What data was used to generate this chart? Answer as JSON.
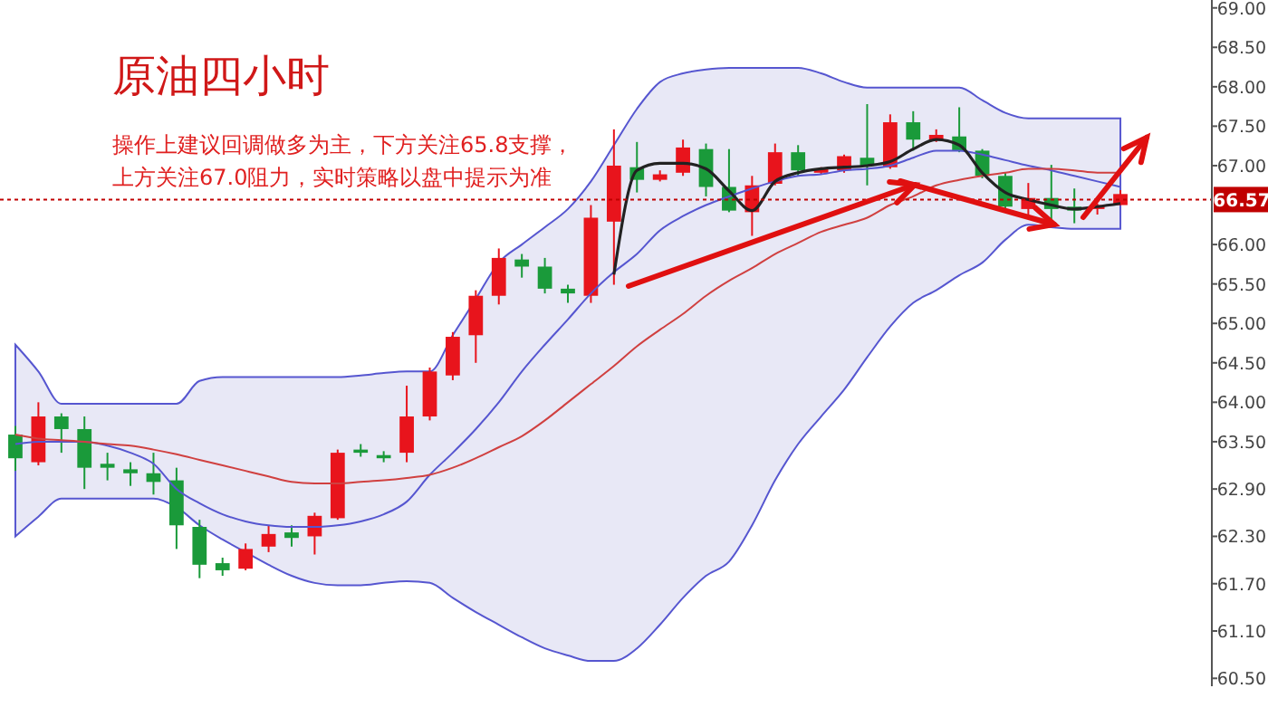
{
  "chart_data": {
    "type": "candlestick",
    "title": "原油四小时",
    "annotations": [
      "操作上建议回调做多为主，下方关注65.8支撑，上方关注67.0阻力，实时策略以盘中提示为准"
    ],
    "categories": [
      null,
      null,
      null,
      null,
      null,
      null,
      null,
      null,
      null,
      null,
      null,
      null,
      null,
      null,
      null,
      null,
      null,
      null,
      null,
      null,
      null,
      null,
      null,
      null,
      null,
      null,
      null,
      null,
      null,
      null,
      null,
      null,
      null,
      null,
      null,
      null,
      null,
      null,
      null,
      null,
      null,
      null,
      null,
      null,
      null,
      null,
      null,
      null,
      null
    ],
    "ohlc": [
      [
        63.59,
        63.7,
        63.13,
        63.29
      ],
      [
        63.24,
        64.0,
        63.2,
        63.82
      ],
      [
        63.82,
        63.86,
        63.36,
        63.66
      ],
      [
        63.66,
        63.82,
        62.9,
        63.17
      ],
      [
        63.22,
        63.36,
        63.01,
        63.17
      ],
      [
        63.15,
        63.24,
        62.94,
        63.1
      ],
      [
        63.1,
        63.36,
        62.83,
        62.99
      ],
      [
        63.01,
        63.17,
        62.14,
        62.44
      ],
      [
        62.42,
        62.51,
        61.77,
        61.94
      ],
      [
        61.96,
        62.03,
        61.8,
        61.87
      ],
      [
        61.89,
        62.21,
        61.87,
        62.14
      ],
      [
        62.17,
        62.44,
        62.1,
        62.33
      ],
      [
        62.35,
        62.44,
        62.17,
        62.28
      ],
      [
        62.3,
        62.6,
        62.07,
        62.56
      ],
      [
        62.53,
        63.4,
        62.51,
        63.36
      ],
      [
        63.4,
        63.47,
        63.31,
        63.36
      ],
      [
        63.33,
        63.38,
        63.24,
        63.29
      ],
      [
        63.36,
        64.21,
        63.24,
        63.82
      ],
      [
        63.82,
        64.44,
        63.77,
        64.39
      ],
      [
        64.34,
        64.89,
        64.28,
        64.83
      ],
      [
        64.85,
        65.42,
        64.5,
        65.35
      ],
      [
        65.35,
        65.95,
        65.24,
        65.83
      ],
      [
        65.81,
        65.88,
        65.58,
        65.72
      ],
      [
        65.72,
        65.83,
        65.38,
        65.44
      ],
      [
        65.44,
        65.49,
        65.26,
        65.38
      ],
      [
        65.35,
        66.5,
        65.26,
        66.34
      ],
      [
        66.29,
        67.46,
        65.49,
        67.0
      ],
      [
        66.98,
        67.3,
        66.66,
        66.82
      ],
      [
        66.82,
        66.94,
        66.8,
        66.89
      ],
      [
        66.91,
        67.33,
        66.87,
        67.23
      ],
      [
        67.21,
        67.28,
        66.61,
        66.73
      ],
      [
        66.73,
        67.21,
        66.41,
        66.43
      ],
      [
        66.41,
        66.87,
        66.11,
        66.75
      ],
      [
        66.77,
        67.28,
        66.75,
        67.17
      ],
      [
        67.17,
        67.26,
        66.87,
        66.94
      ],
      [
        66.91,
        66.98,
        66.89,
        66.96
      ],
      [
        66.94,
        67.14,
        66.91,
        67.12
      ],
      [
        67.1,
        67.78,
        66.75,
        67.0
      ],
      [
        66.98,
        67.65,
        66.96,
        67.55
      ],
      [
        67.55,
        67.69,
        67.19,
        67.33
      ],
      [
        67.33,
        67.46,
        67.3,
        67.39
      ],
      [
        67.37,
        67.74,
        67.17,
        67.19
      ],
      [
        67.19,
        67.21,
        66.84,
        66.87
      ],
      [
        66.87,
        66.91,
        66.45,
        66.48
      ],
      [
        66.45,
        66.78,
        66.38,
        66.59
      ],
      [
        66.59,
        67.01,
        66.29,
        66.45
      ],
      [
        66.48,
        66.71,
        66.27,
        66.43
      ],
      [
        66.45,
        66.52,
        66.38,
        66.5
      ],
      [
        66.5,
        66.69,
        66.5,
        66.64
      ]
    ],
    "series": [
      {
        "type": "line",
        "color": "#5656d0",
        "values": [
          63.47,
          63.5,
          63.5,
          63.5,
          63.45,
          63.36,
          63.22,
          62.9,
          62.72,
          62.58,
          62.49,
          62.44,
          62.42,
          62.42,
          62.44,
          62.49,
          62.58,
          62.74,
          63.08,
          63.36,
          63.66,
          64.0,
          64.39,
          64.73,
          65.05,
          65.38,
          65.65,
          65.88,
          66.18,
          66.36,
          66.5,
          66.61,
          66.71,
          66.8,
          66.87,
          66.89,
          66.94,
          66.96,
          67.0,
          67.1,
          67.19,
          67.19,
          67.14,
          67.07,
          67.0,
          66.94,
          66.87,
          66.8,
          66.73
        ],
        "upper": [
          64.73,
          64.39,
          63.98,
          63.98,
          63.98,
          63.98,
          63.98,
          63.98,
          64.27,
          64.32,
          64.32,
          64.32,
          64.32,
          64.32,
          64.32,
          64.34,
          64.37,
          64.39,
          64.39,
          64.85,
          65.31,
          65.77,
          66.0,
          66.22,
          66.45,
          66.8,
          67.26,
          67.72,
          68.06,
          68.17,
          68.22,
          68.24,
          68.24,
          68.24,
          68.24,
          68.17,
          68.06,
          67.99,
          67.99,
          67.99,
          67.99,
          67.99,
          67.83,
          67.67,
          67.6,
          67.6,
          67.6,
          67.6,
          67.6
        ],
        "lower": [
          62.3,
          62.55,
          62.78,
          62.78,
          62.78,
          62.78,
          62.78,
          62.67,
          62.44,
          62.26,
          62.1,
          61.94,
          61.8,
          61.71,
          61.68,
          61.68,
          61.71,
          61.73,
          61.71,
          61.52,
          61.34,
          61.18,
          61.02,
          60.88,
          60.79,
          60.72,
          60.72,
          60.88,
          61.18,
          61.52,
          61.8,
          61.98,
          62.44,
          63.01,
          63.47,
          63.82,
          64.16,
          64.57,
          64.96,
          65.26,
          65.42,
          65.61,
          65.77,
          66.06,
          66.25,
          66.22,
          66.2,
          66.2,
          66.2
        ]
      },
      {
        "type": "line",
        "color": "#d04040",
        "values": [
          63.59,
          63.54,
          63.52,
          63.5,
          63.47,
          63.45,
          63.4,
          63.34,
          63.27,
          63.2,
          63.13,
          63.06,
          62.99,
          62.97,
          62.97,
          62.99,
          63.01,
          63.04,
          63.08,
          63.17,
          63.29,
          63.43,
          63.57,
          63.77,
          64.0,
          64.23,
          64.46,
          64.71,
          64.92,
          65.12,
          65.35,
          65.54,
          65.7,
          65.88,
          66.02,
          66.16,
          66.25,
          66.34,
          66.5,
          66.61,
          66.75,
          66.82,
          66.87,
          66.91,
          66.96,
          66.96,
          66.94,
          66.91,
          66.91
        ]
      },
      {
        "type": "line",
        "color": "#222222",
        "values": [
          null,
          null,
          null,
          null,
          null,
          null,
          null,
          null,
          null,
          null,
          null,
          null,
          null,
          null,
          null,
          null,
          null,
          null,
          null,
          null,
          null,
          null,
          null,
          null,
          null,
          null,
          65.62,
          66.94,
          67.03,
          67.03,
          66.96,
          66.68,
          66.43,
          66.8,
          66.91,
          66.96,
          66.98,
          67.0,
          67.05,
          67.21,
          67.33,
          67.26,
          66.91,
          66.66,
          66.57,
          66.5,
          66.45,
          66.48,
          66.52
        ]
      }
    ],
    "ylim": [
      60.4,
      69.1
    ],
    "yticks": [
      {
        "value": 69,
        "label": "69.00"
      },
      {
        "value": 68.5,
        "label": "68.50"
      },
      {
        "value": 68,
        "label": "68.00"
      },
      {
        "value": 67.5,
        "label": "67.50"
      },
      {
        "value": 67,
        "label": "67.00"
      },
      {
        "value": 66,
        "label": "66.00"
      },
      {
        "value": 65.5,
        "label": "65.50"
      },
      {
        "value": 65,
        "label": "65.00"
      },
      {
        "value": 64.5,
        "label": "64.50"
      },
      {
        "value": 64,
        "label": "64.00"
      },
      {
        "value": 63.5,
        "label": "63.50"
      },
      {
        "value": 62.9,
        "label": "62.90"
      },
      {
        "value": 62.3,
        "label": "62.30"
      },
      {
        "value": 61.7,
        "label": "61.70"
      },
      {
        "value": 61.1,
        "label": "61.10"
      },
      {
        "value": 60.5,
        "label": "60.50"
      }
    ],
    "ref_lines": [
      {
        "axis": "y",
        "value": 66.57,
        "label": "66.57",
        "color": "#c00000",
        "line_style": "dotted"
      }
    ],
    "grid": false
  }
}
